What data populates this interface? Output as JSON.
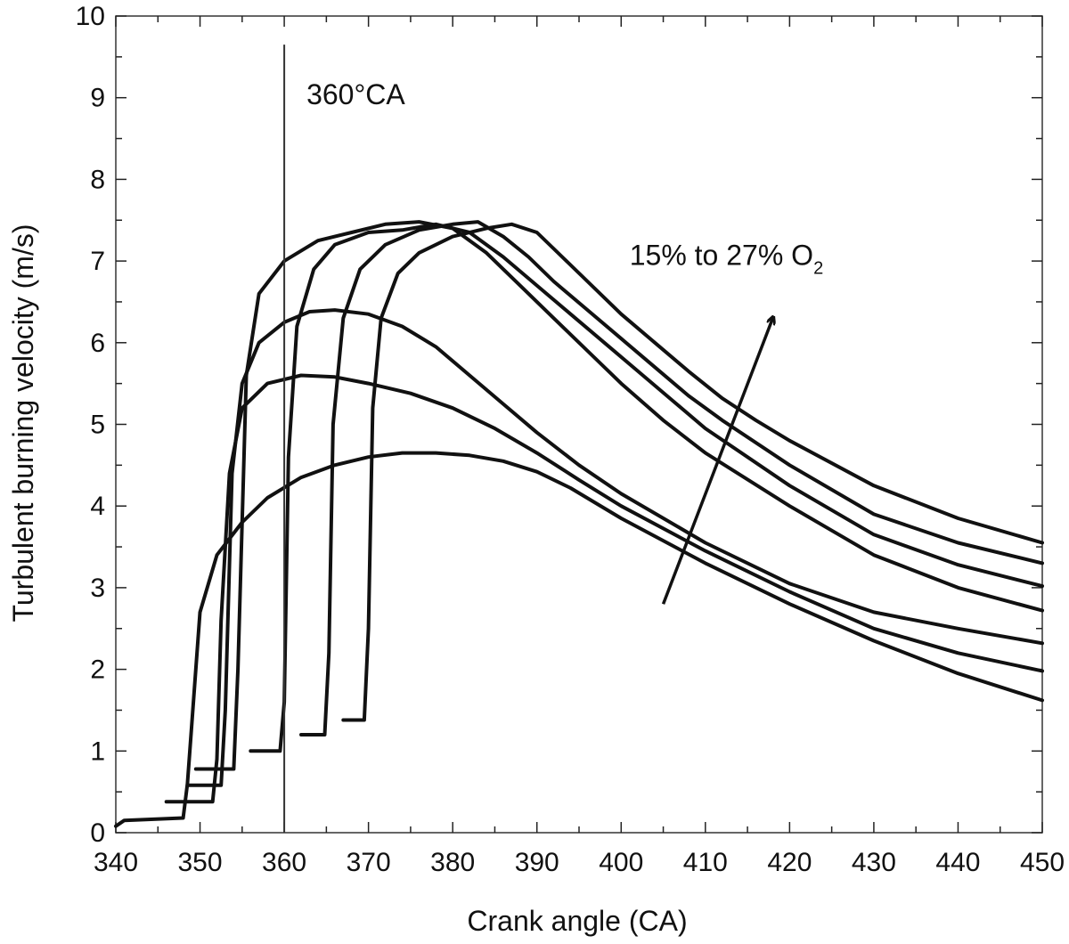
{
  "chart_data": {
    "type": "line",
    "xlabel": "Crank angle (CA)",
    "ylabel": "Turbulent burning velocity (m/s)",
    "xlim": [
      340,
      450
    ],
    "ylim": [
      0,
      10
    ],
    "x_ticks": [
      340,
      350,
      360,
      370,
      380,
      390,
      400,
      410,
      420,
      430,
      440,
      450
    ],
    "y_ticks": [
      0,
      1,
      2,
      3,
      4,
      5,
      6,
      7,
      8,
      9,
      10
    ],
    "grid": false,
    "legend": "none",
    "reference_line": {
      "x": 360,
      "label": "360°CA"
    },
    "annotation": {
      "text": "15% to 27% O",
      "subscript": "2",
      "arrow_from": [
        405,
        2.8
      ],
      "arrow_to": [
        418,
        6.3
      ]
    },
    "series": [
      {
        "x": [
          340,
          341,
          348,
          348.5,
          350,
          352,
          355,
          358,
          362,
          366,
          370,
          374,
          378,
          382,
          386,
          390,
          394,
          400,
          410,
          420,
          430,
          440,
          450
        ],
        "y": [
          0.08,
          0.15,
          0.18,
          0.6,
          2.7,
          3.4,
          3.8,
          4.1,
          4.35,
          4.5,
          4.6,
          4.65,
          4.65,
          4.62,
          4.55,
          4.42,
          4.22,
          3.85,
          3.3,
          2.8,
          2.35,
          1.95,
          1.62
        ]
      },
      {
        "x": [
          346,
          351.5,
          352,
          352.5,
          353.5,
          355,
          358,
          362,
          366,
          370,
          375,
          380,
          385,
          390,
          395,
          400,
          410,
          420,
          430,
          440,
          450
        ],
        "y": [
          0.38,
          0.38,
          0.9,
          2.6,
          4.4,
          5.2,
          5.5,
          5.6,
          5.58,
          5.5,
          5.38,
          5.2,
          4.95,
          4.65,
          4.32,
          4.0,
          3.45,
          2.95,
          2.5,
          2.2,
          1.98
        ]
      },
      {
        "x": [
          348.5,
          352.5,
          353,
          353.8,
          355,
          357,
          360,
          363,
          366,
          370,
          374,
          378,
          382,
          386,
          390,
          395,
          400,
          410,
          420,
          430,
          440,
          450
        ],
        "y": [
          0.58,
          0.58,
          1.5,
          4.4,
          5.5,
          6.0,
          6.25,
          6.38,
          6.4,
          6.35,
          6.2,
          5.95,
          5.6,
          5.25,
          4.9,
          4.5,
          4.15,
          3.55,
          3.05,
          2.7,
          2.5,
          2.32
        ]
      },
      {
        "x": [
          349.5,
          354,
          354.5,
          355.5,
          357,
          360,
          364,
          368,
          372,
          376,
          380,
          384,
          388,
          392,
          396,
          400,
          405,
          410,
          420,
          430,
          440,
          450
        ],
        "y": [
          0.78,
          0.78,
          2.0,
          5.6,
          6.6,
          7.0,
          7.25,
          7.35,
          7.45,
          7.48,
          7.4,
          7.1,
          6.7,
          6.3,
          5.9,
          5.5,
          5.05,
          4.65,
          4.0,
          3.4,
          3.0,
          2.72
        ]
      },
      {
        "x": [
          356,
          359.5,
          360,
          360.5,
          361.5,
          363.5,
          366,
          370,
          374,
          378,
          382,
          386,
          390,
          394,
          398,
          402,
          406,
          410,
          420,
          430,
          440,
          450
        ],
        "y": [
          1.0,
          1.0,
          1.6,
          4.6,
          6.2,
          6.9,
          7.2,
          7.35,
          7.38,
          7.45,
          7.35,
          7.05,
          6.7,
          6.35,
          6.0,
          5.65,
          5.3,
          4.95,
          4.25,
          3.65,
          3.28,
          3.02
        ]
      },
      {
        "x": [
          362,
          364.8,
          365.3,
          365.8,
          367,
          369,
          372,
          376,
          380,
          383,
          386,
          389,
          392,
          396,
          400,
          404,
          408,
          412,
          420,
          430,
          440,
          450
        ],
        "y": [
          1.2,
          1.2,
          2.2,
          5.0,
          6.3,
          6.9,
          7.2,
          7.38,
          7.45,
          7.48,
          7.3,
          7.05,
          6.75,
          6.4,
          6.05,
          5.7,
          5.35,
          5.05,
          4.5,
          3.9,
          3.55,
          3.3
        ]
      },
      {
        "x": [
          367,
          369.5,
          370,
          370.5,
          371.5,
          373.5,
          376,
          380,
          384,
          387,
          390,
          393,
          396,
          400,
          404,
          408,
          412,
          416,
          420,
          430,
          440,
          450
        ],
        "y": [
          1.38,
          1.38,
          2.5,
          5.2,
          6.3,
          6.85,
          7.1,
          7.3,
          7.4,
          7.45,
          7.35,
          7.05,
          6.75,
          6.35,
          6.0,
          5.65,
          5.32,
          5.05,
          4.8,
          4.25,
          3.85,
          3.55
        ]
      }
    ]
  }
}
